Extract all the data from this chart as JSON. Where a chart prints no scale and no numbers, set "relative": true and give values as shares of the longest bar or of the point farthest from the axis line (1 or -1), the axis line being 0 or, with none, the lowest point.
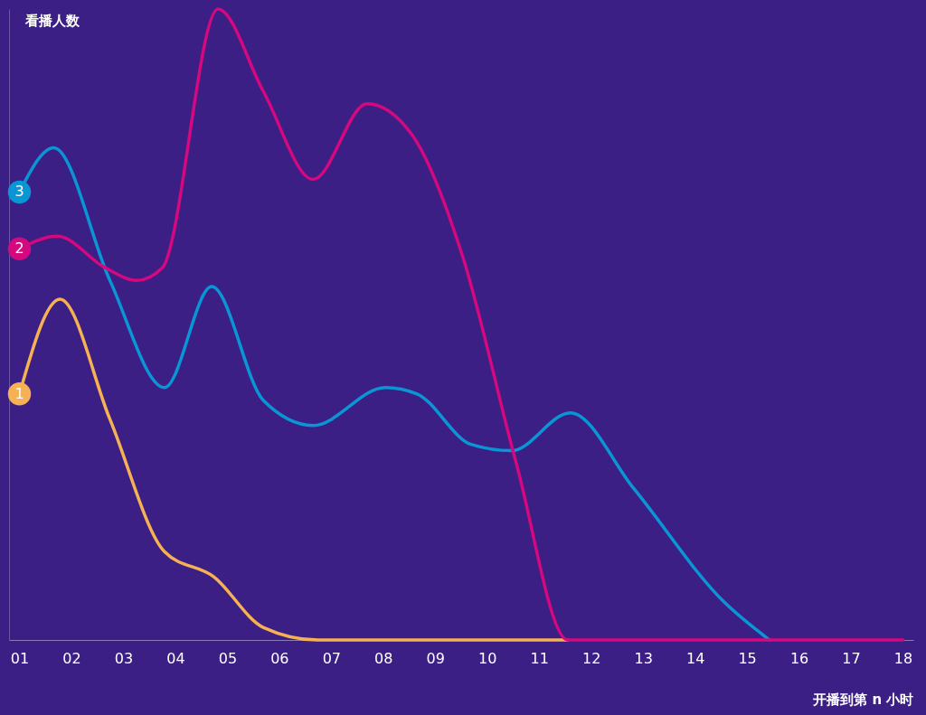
{
  "chart_data": {
    "type": "line",
    "relative": true,
    "xlabel": "开播到第 n 小时",
    "ylabel": "看播人数",
    "xlim": [
      0.8,
      18.2
    ],
    "xticks": [
      {
        "value": 1,
        "label": "01"
      },
      {
        "value": 2,
        "label": "02"
      },
      {
        "value": 3,
        "label": "03"
      },
      {
        "value": 4,
        "label": "04"
      },
      {
        "value": 5,
        "label": "05"
      },
      {
        "value": 6,
        "label": "06"
      },
      {
        "value": 7,
        "label": "07"
      },
      {
        "value": 8,
        "label": "08"
      },
      {
        "value": 9,
        "label": "09"
      },
      10,
      11,
      12,
      13,
      14,
      15,
      16,
      17,
      18
    ],
    "grid": false,
    "legend": false,
    "series": [
      {
        "name": "1",
        "color": "#f7b155",
        "x": [
          1,
          1.78,
          2.74,
          3.79,
          4.74,
          5.69,
          6.74,
          11.55
        ],
        "values": [
          0.39,
          0.54,
          0.35,
          0.14,
          0.1,
          0.02,
          0,
          0
        ]
      },
      {
        "name": "3",
        "color": "#0a96d4",
        "x": [
          1,
          1.66,
          2.74,
          3.79,
          4.7,
          5.69,
          6.65,
          8.04,
          8.65,
          9.69,
          10.47,
          11.6,
          12.82,
          14.56,
          15.43
        ],
        "values": [
          0.71,
          0.78,
          0.57,
          0.4,
          0.56,
          0.38,
          0.34,
          0.4,
          0.39,
          0.31,
          0.3,
          0.36,
          0.24,
          0.06,
          0
        ]
      },
      {
        "name": "2",
        "color": "#d4087f",
        "x": [
          1,
          1.73,
          2.65,
          3.26,
          3.75,
          4.82,
          5.69,
          6.65,
          7.69,
          8.56,
          9.52,
          10.56,
          11.55,
          18
        ],
        "values": [
          0.62,
          0.64,
          0.59,
          0.57,
          0.59,
          1,
          0.87,
          0.73,
          0.85,
          0.8,
          0.61,
          0.28,
          0,
          0
        ]
      }
    ]
  }
}
